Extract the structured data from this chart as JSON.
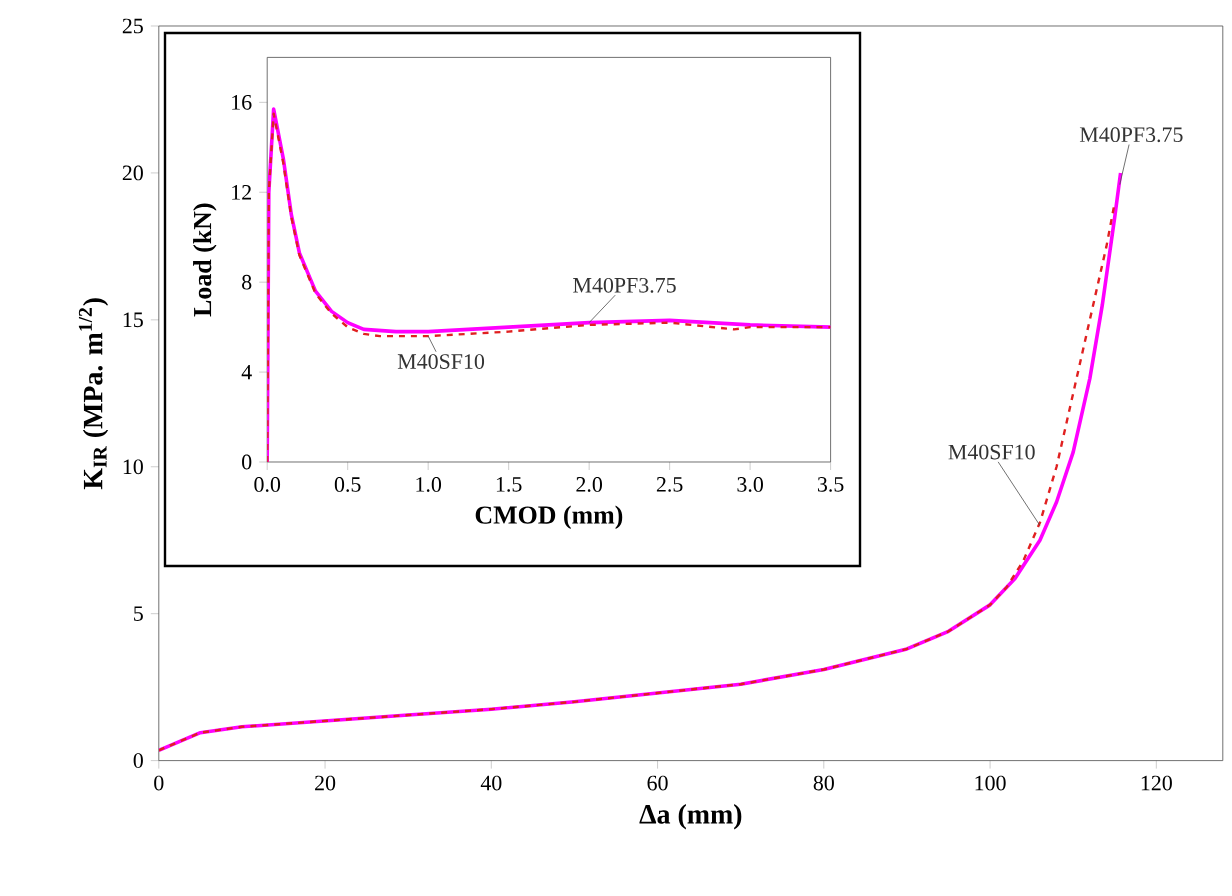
{
  "chart_data": [
    {
      "type": "line",
      "xlabel": "Δa (mm)",
      "ylabel": "K$_{IR}$ (MPa. m$^{1/2}$)",
      "xlim": [
        0,
        128
      ],
      "ylim": [
        0,
        25
      ],
      "xticks": [
        0,
        20,
        40,
        60,
        80,
        100,
        120
      ],
      "yticks": [
        0,
        5,
        10,
        15,
        20,
        25
      ],
      "marker": "none",
      "series": [
        {
          "name": "M40PF3.75",
          "color": "#ff00ff",
          "line_style": "solid",
          "x": [
            0,
            5,
            10,
            20,
            30,
            40,
            50,
            60,
            70,
            80,
            90,
            95,
            100,
            103,
            106,
            108,
            110,
            112,
            113.5,
            115,
            115.7
          ],
          "values": [
            0.35,
            0.95,
            1.15,
            1.35,
            1.55,
            1.75,
            2.0,
            2.3,
            2.6,
            3.1,
            3.8,
            4.4,
            5.3,
            6.2,
            7.5,
            8.8,
            10.5,
            13.0,
            15.5,
            18.5,
            20.0
          ]
        },
        {
          "name": "M40SF10",
          "color": "#e02020",
          "line_style": "dashed",
          "x": [
            0,
            5,
            10,
            20,
            30,
            40,
            50,
            60,
            70,
            80,
            90,
            95,
            100,
            102,
            104,
            106,
            108,
            110,
            112,
            114,
            115
          ],
          "values": [
            0.35,
            0.95,
            1.15,
            1.35,
            1.55,
            1.75,
            2.0,
            2.3,
            2.6,
            3.1,
            3.8,
            4.4,
            5.3,
            5.9,
            6.8,
            8.1,
            10.0,
            12.5,
            15.0,
            17.5,
            19.0
          ]
        }
      ]
    },
    {
      "type": "line",
      "xlabel": "CMOD (mm)",
      "ylabel": "Load (kN)",
      "xlim": [
        0,
        3.5
      ],
      "ylim": [
        0,
        18
      ],
      "xticks": [
        {
          "value": 0,
          "label": "0.0"
        },
        0.5,
        {
          "value": 1,
          "label": "1.0"
        },
        1.5,
        {
          "value": 2,
          "label": "2.0"
        },
        2.5,
        {
          "value": 3,
          "label": "3.0"
        },
        3.5
      ],
      "yticks": [
        0,
        4,
        8,
        12,
        16
      ],
      "marker": "none",
      "series": [
        {
          "name": "M40PF3.75",
          "color": "#ff00ff",
          "line_style": "solid",
          "x": [
            0,
            0.01,
            0.04,
            0.1,
            0.15,
            0.2,
            0.3,
            0.4,
            0.5,
            0.6,
            0.8,
            1.0,
            1.5,
            2.0,
            2.5,
            3.0,
            3.5
          ],
          "values": [
            0,
            12,
            15.7,
            13.5,
            11.0,
            9.3,
            7.6,
            6.7,
            6.2,
            5.9,
            5.8,
            5.8,
            6.0,
            6.2,
            6.3,
            6.1,
            6.0
          ]
        },
        {
          "name": "M40SF10",
          "color": "#e02020",
          "line_style": "dashed",
          "x": [
            0,
            0.01,
            0.04,
            0.1,
            0.15,
            0.2,
            0.3,
            0.4,
            0.5,
            0.6,
            0.7,
            1.0,
            1.5,
            2.0,
            2.5,
            2.9,
            3.0,
            3.5
          ],
          "values": [
            0,
            12,
            15.5,
            13.3,
            10.9,
            9.2,
            7.5,
            6.6,
            6.0,
            5.7,
            5.6,
            5.6,
            5.8,
            6.1,
            6.2,
            5.9,
            6.0,
            6.0
          ]
        }
      ]
    }
  ]
}
